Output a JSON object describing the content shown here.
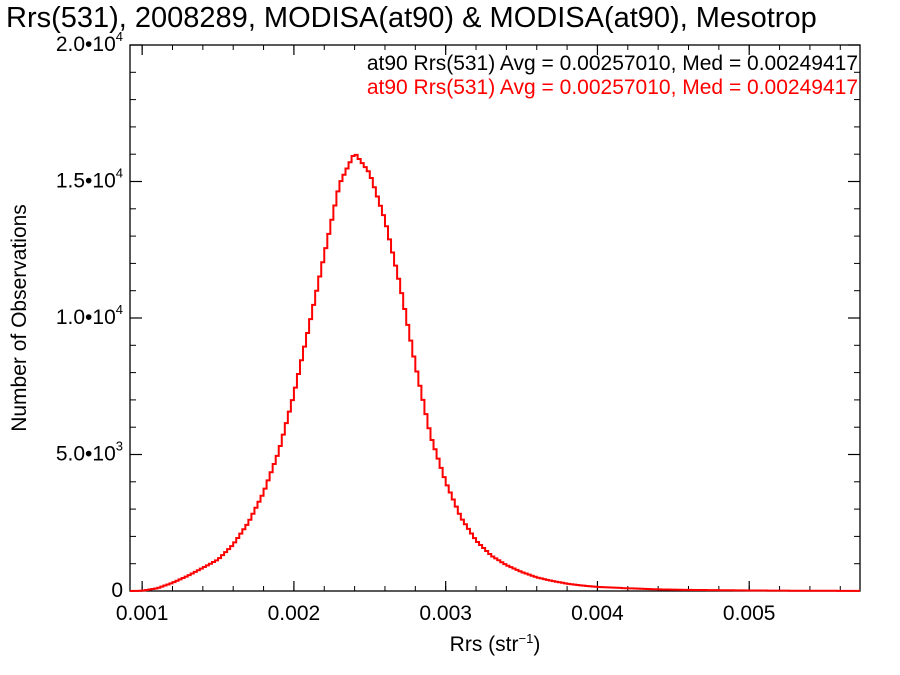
{
  "chart_data": {
    "type": "histogram",
    "title": "Rrs(531), 2008289, MODISA(at90) & MODISA(at90), Mesotrop",
    "stats": [
      {
        "text": "at90 Rrs(531) Avg = 0.00257010, Med = 0.00249417",
        "color": "#000000"
      },
      {
        "text": "at90 Rrs(531) Avg = 0.00257010, Med = 0.00249417",
        "color": "#ff0000"
      }
    ],
    "xlabel": {
      "base": "Rrs (str",
      "sup": "−1",
      "end": ")"
    },
    "ylabel": "Number of Observations",
    "xlim": [
      0.00092,
      0.00573
    ],
    "ylim": [
      0,
      20000
    ],
    "xticks": [
      {
        "value": 0.001,
        "label": "0.001"
      },
      {
        "value": 0.002,
        "label": "0.002"
      },
      {
        "value": 0.003,
        "label": "0.003"
      },
      {
        "value": 0.004,
        "label": "0.004"
      },
      {
        "value": 0.005,
        "label": "0.005"
      }
    ],
    "yticks": [
      {
        "value": 0,
        "mant": "0",
        "exp": ""
      },
      {
        "value": 5000,
        "mant": "5.0•10",
        "exp": "3"
      },
      {
        "value": 10000,
        "mant": "1.0•10",
        "exp": "4"
      },
      {
        "value": 15000,
        "mant": "1.5•10",
        "exp": "4"
      },
      {
        "value": 20000,
        "mant": "2.0•10",
        "exp": "4"
      }
    ],
    "series": [
      {
        "color": "#ff0000",
        "points": [
          [
            0.00092,
            0
          ],
          [
            0.001,
            10
          ],
          [
            0.0011,
            100
          ],
          [
            0.0012,
            300
          ],
          [
            0.0013,
            550
          ],
          [
            0.0014,
            850
          ],
          [
            0.0015,
            1150
          ],
          [
            0.0016,
            1700
          ],
          [
            0.0017,
            2500
          ],
          [
            0.0018,
            3600
          ],
          [
            0.0019,
            5100
          ],
          [
            0.002,
            7200
          ],
          [
            0.0021,
            9700
          ],
          [
            0.0022,
            12300
          ],
          [
            0.0023,
            14900
          ],
          [
            0.0024,
            16050
          ],
          [
            0.0025,
            15300
          ],
          [
            0.0026,
            13600
          ],
          [
            0.0027,
            11200
          ],
          [
            0.0028,
            8300
          ],
          [
            0.0029,
            5700
          ],
          [
            0.003,
            4000
          ],
          [
            0.0031,
            2700
          ],
          [
            0.0032,
            1850
          ],
          [
            0.0033,
            1300
          ],
          [
            0.0034,
            950
          ],
          [
            0.0035,
            700
          ],
          [
            0.0036,
            500
          ],
          [
            0.0037,
            370
          ],
          [
            0.0038,
            270
          ],
          [
            0.0039,
            200
          ],
          [
            0.004,
            150
          ],
          [
            0.0042,
            100
          ],
          [
            0.0044,
            60
          ],
          [
            0.0046,
            40
          ],
          [
            0.0048,
            30
          ],
          [
            0.005,
            20
          ],
          [
            0.0053,
            10
          ],
          [
            0.00573,
            5
          ]
        ]
      }
    ],
    "grid": false
  }
}
